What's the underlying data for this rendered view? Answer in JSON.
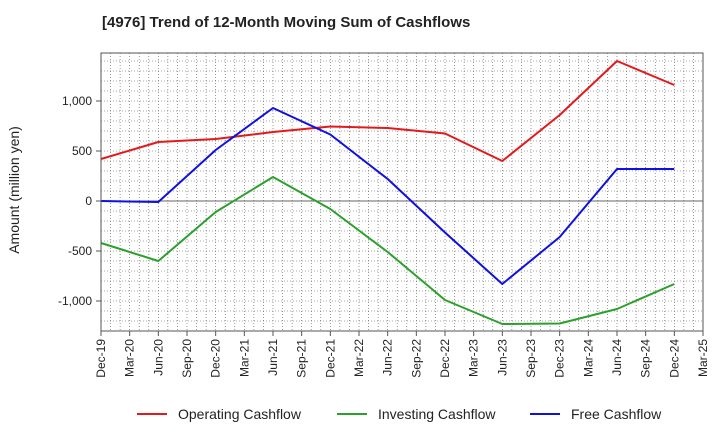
{
  "chart_data": {
    "type": "line",
    "title": "[4976]  Trend of 12-Month Moving Sum of Cashflows",
    "xlabel": "",
    "ylabel": "Amount (million yen)",
    "categories": [
      "Dec-19",
      "Mar-20",
      "Jun-20",
      "Sep-20",
      "Dec-20",
      "Mar-21",
      "Jun-21",
      "Sep-21",
      "Dec-21",
      "Mar-22",
      "Jun-22",
      "Sep-22",
      "Dec-22",
      "Mar-23",
      "Jun-23",
      "Sep-23",
      "Dec-23",
      "Mar-24",
      "Jun-24",
      "Sep-24",
      "Dec-24",
      "Mar-25"
    ],
    "ylim": [
      -1300,
      1480
    ],
    "yticks": [
      -1000,
      -500,
      0,
      500,
      1000
    ],
    "ytick_labels": [
      "-1,000",
      "-500",
      "0",
      "500",
      "1,000"
    ],
    "grid": true,
    "legend_position": "bottom",
    "series": [
      {
        "name": "Operating Cashflow",
        "color": "#e31a1c",
        "points": [
          [
            "Dec-19",
            420
          ],
          [
            "Jun-20",
            590
          ],
          [
            "Dec-20",
            620
          ],
          [
            "Jun-21",
            690
          ],
          [
            "Dec-21",
            745
          ],
          [
            "Jun-22",
            730
          ],
          [
            "Dec-22",
            675
          ],
          [
            "Jun-23",
            400
          ],
          [
            "Dec-23",
            860
          ],
          [
            "Jun-24",
            1400
          ],
          [
            "Dec-24",
            1160
          ]
        ]
      },
      {
        "name": "Investing Cashflow",
        "color": "#2ca02c",
        "points": [
          [
            "Dec-19",
            -420
          ],
          [
            "Jun-20",
            -600
          ],
          [
            "Dec-20",
            -110
          ],
          [
            "Jun-21",
            240
          ],
          [
            "Dec-21",
            -80
          ],
          [
            "Jun-22",
            -510
          ],
          [
            "Dec-22",
            -990
          ],
          [
            "Jun-23",
            -1230
          ],
          [
            "Dec-23",
            -1225
          ],
          [
            "Jun-24",
            -1080
          ],
          [
            "Dec-24",
            -830
          ]
        ]
      },
      {
        "name": "Free Cashflow",
        "color": "#1010e0",
        "points": [
          [
            "Dec-19",
            0
          ],
          [
            "Jun-20",
            -10
          ],
          [
            "Dec-20",
            510
          ],
          [
            "Jun-21",
            930
          ],
          [
            "Dec-21",
            665
          ],
          [
            "Jun-22",
            220
          ],
          [
            "Dec-22",
            -315
          ],
          [
            "Jun-23",
            -830
          ],
          [
            "Dec-23",
            -360
          ],
          [
            "Jun-24",
            320
          ],
          [
            "Dec-24",
            320
          ]
        ]
      }
    ]
  }
}
